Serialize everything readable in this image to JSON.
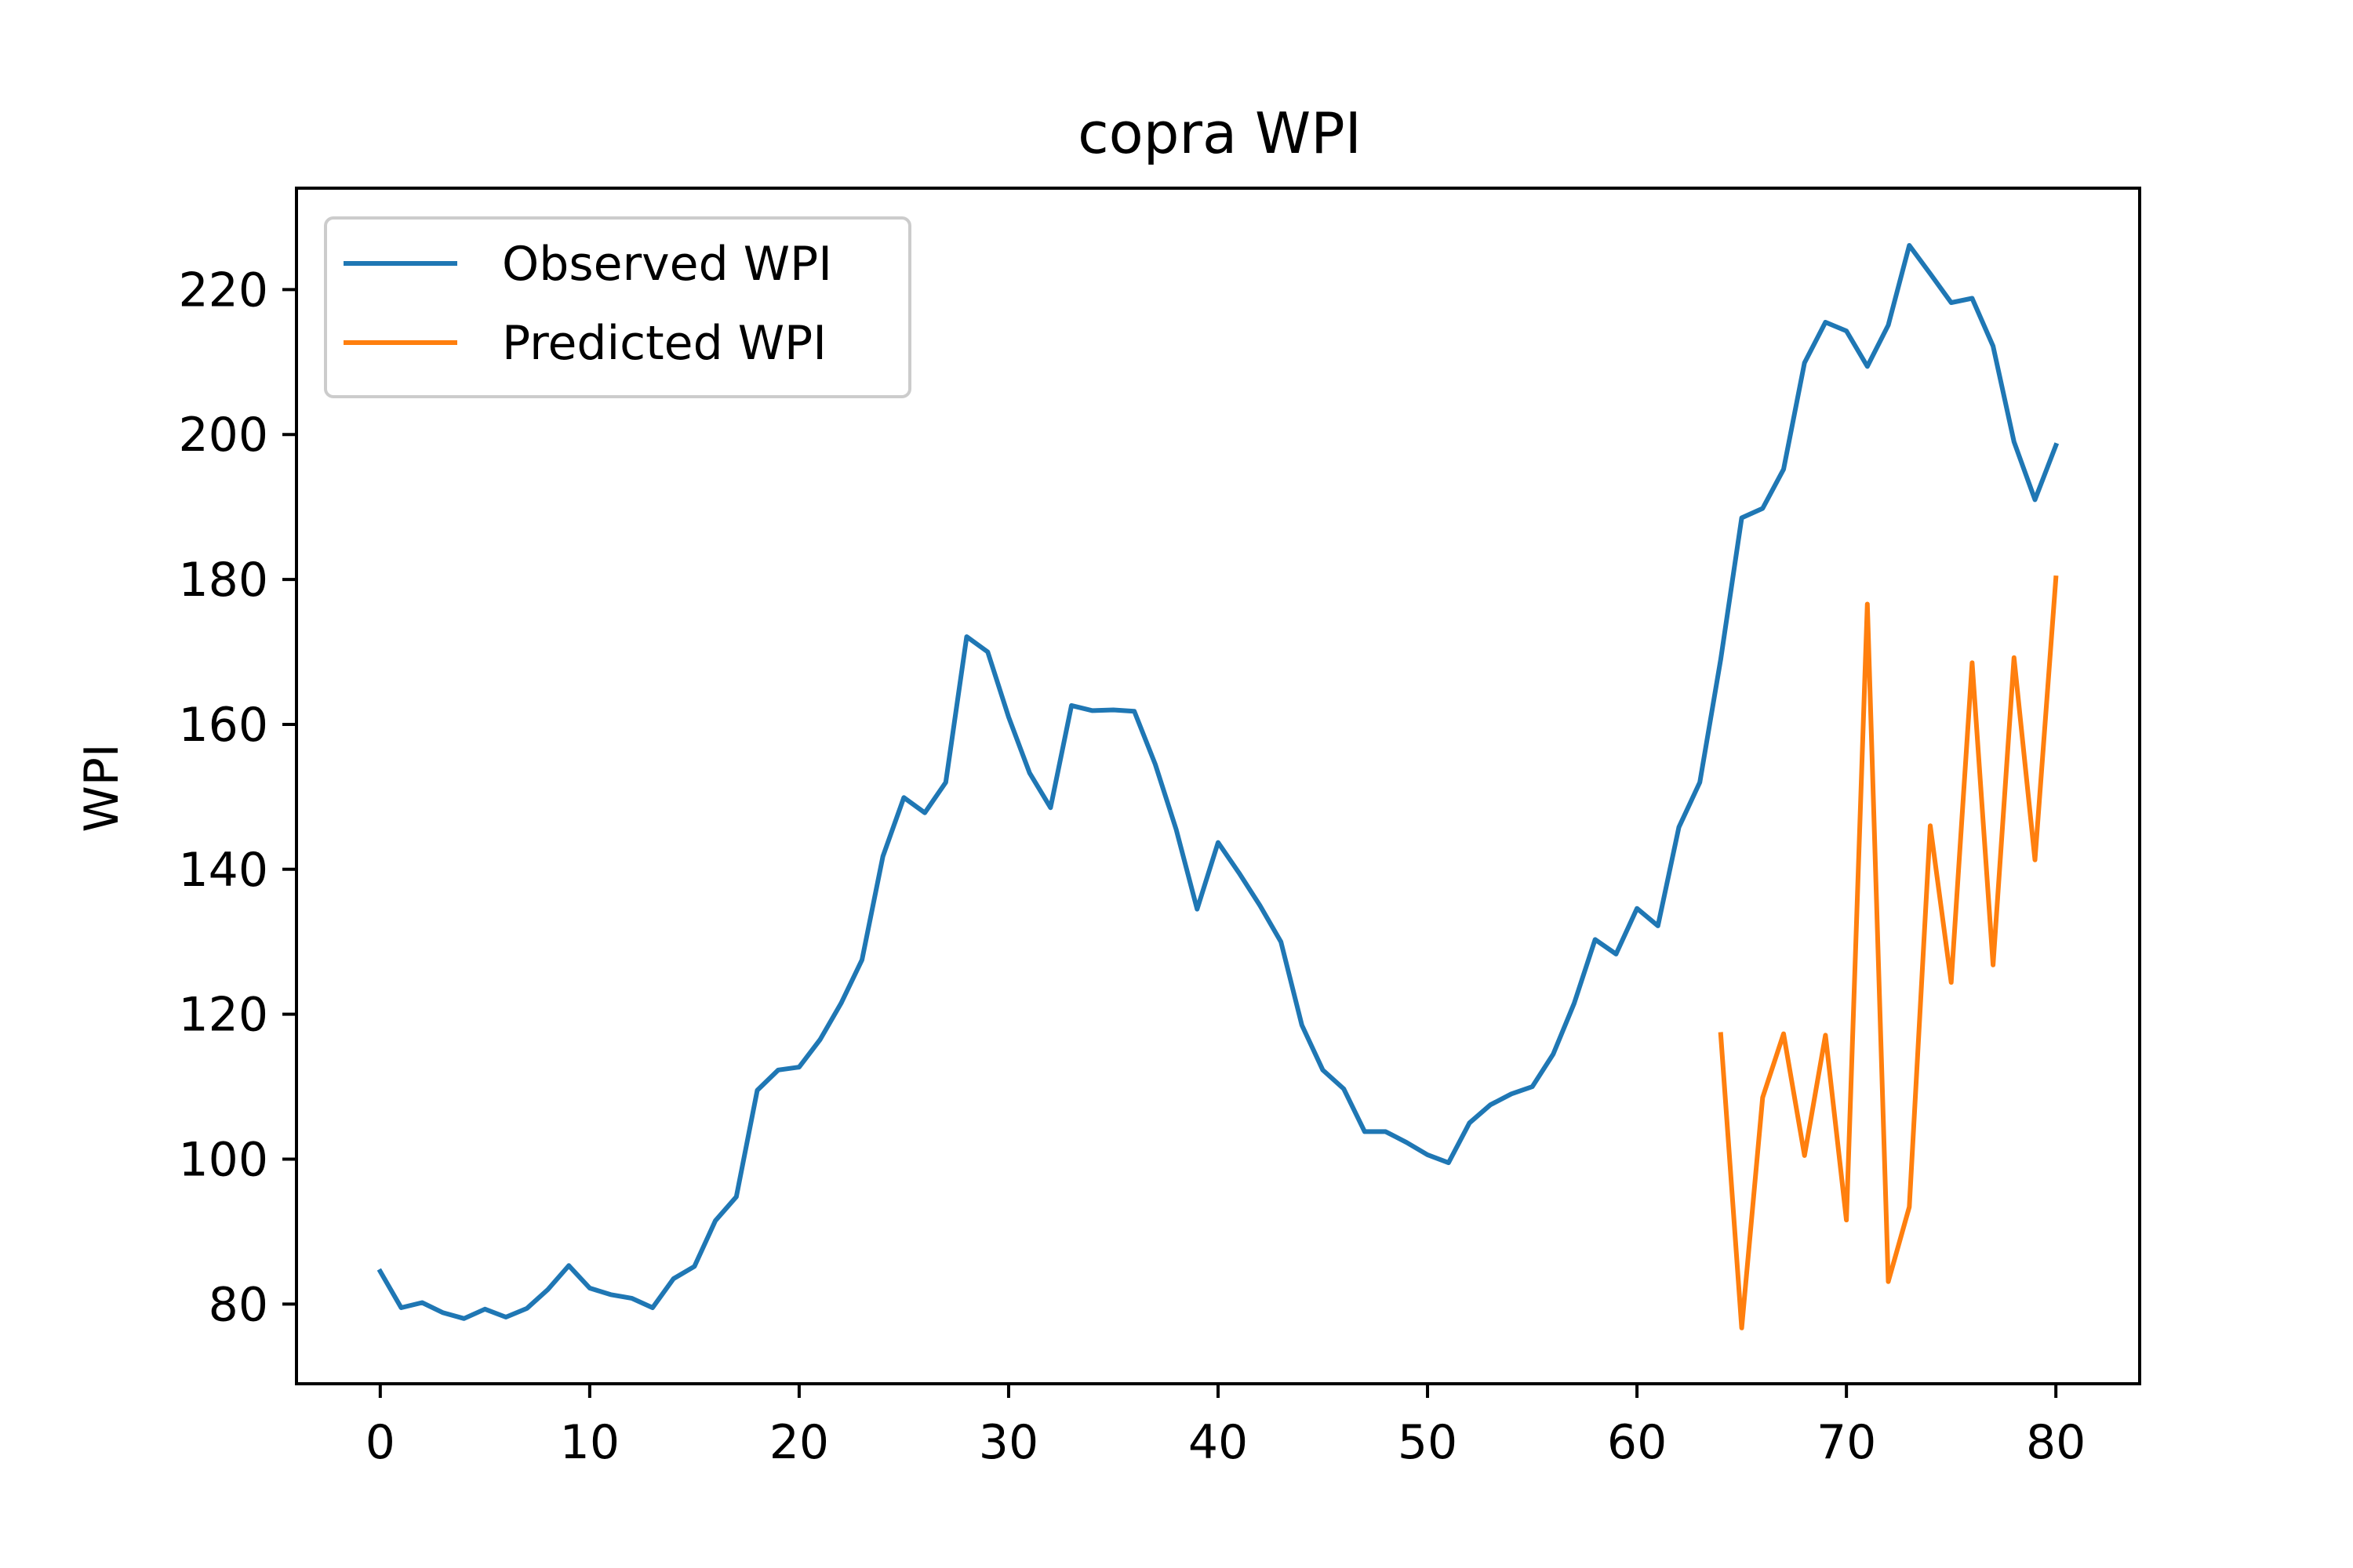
{
  "chart_data": {
    "type": "line",
    "title": "copra WPI",
    "xlabel": "",
    "ylabel": "WPI",
    "xlim": [
      -4,
      84
    ],
    "ylim": [
      69,
      234
    ],
    "x_ticks": [
      0,
      10,
      20,
      30,
      40,
      50,
      60,
      70,
      80
    ],
    "y_ticks": [
      80,
      100,
      120,
      140,
      160,
      180,
      200,
      220
    ],
    "grid": false,
    "legend": "upper-left",
    "series": [
      {
        "name": "Observed WPI",
        "color": "#1f77b4",
        "x": [
          0,
          1,
          2,
          3,
          4,
          5,
          6,
          7,
          8,
          9,
          10,
          11,
          12,
          13,
          14,
          15,
          16,
          17,
          18,
          19,
          20,
          21,
          22,
          23,
          24,
          25,
          26,
          27,
          28,
          29,
          30,
          31,
          32,
          33,
          34,
          35,
          36,
          37,
          38,
          39,
          40,
          41,
          42,
          43,
          44,
          45,
          46,
          47,
          48,
          49,
          50,
          51,
          52,
          53,
          54,
          55,
          56,
          57,
          58,
          59,
          60,
          61,
          62,
          63,
          64,
          65,
          66,
          67,
          68,
          69,
          70,
          71,
          72,
          73,
          74,
          75,
          76,
          77,
          78,
          79,
          80
        ],
        "values": [
          84.5,
          79.5,
          80.2,
          78.8,
          78.0,
          79.3,
          78.2,
          79.4,
          82.0,
          85.3,
          82.2,
          81.3,
          80.8,
          79.5,
          83.5,
          85.2,
          91.5,
          94.8,
          109.5,
          112.3,
          112.7,
          116.5,
          121.5,
          127.5,
          141.8,
          149.9,
          147.8,
          152.0,
          172.1,
          170.0,
          161.0,
          153.3,
          148.5,
          162.6,
          161.9,
          162.0,
          161.8,
          154.5,
          145.5,
          134.5,
          143.7,
          139.5,
          135.0,
          130.0,
          118.5,
          112.3,
          109.7,
          103.8,
          103.8,
          102.3,
          100.6,
          99.5,
          105.0,
          107.5,
          109.0,
          110.0,
          114.5,
          121.5,
          130.3,
          128.3,
          134.6,
          132.2,
          145.8,
          152.0,
          169.0,
          188.5,
          189.8,
          195.2,
          209.9,
          215.5,
          214.3,
          209.4,
          215.1,
          226.1,
          222.2,
          218.2,
          218.8,
          212.2,
          199.0,
          191.0,
          198.5
        ]
      },
      {
        "name": "Predicted WPI",
        "color": "#ff7f0e",
        "x": [
          64,
          65,
          66,
          67,
          68,
          69,
          70,
          71,
          72,
          73,
          74,
          75,
          76,
          77,
          78,
          79,
          80
        ],
        "values": [
          117.2,
          76.7,
          108.5,
          117.3,
          100.5,
          117.1,
          91.6,
          176.6,
          83.1,
          93.4,
          146.0,
          124.4,
          168.5,
          126.8,
          169.2,
          141.3,
          180.2
        ]
      }
    ]
  }
}
